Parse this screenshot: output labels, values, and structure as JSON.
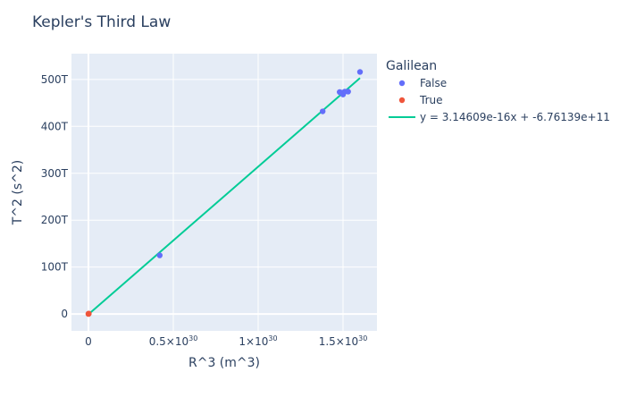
{
  "chart_data": {
    "type": "scatter",
    "title": "Kepler's Third Law",
    "xlabel": "R^3 (m^3)",
    "ylabel": "T^2 (s^2)",
    "xlim": [
      -1e+29,
      1.7e+30
    ],
    "ylim": [
      -36000000000000.0,
      555000000000000.0
    ],
    "x_ticks": [
      {
        "value": 0,
        "label": "0",
        "sup": ""
      },
      {
        "value": 5e+29,
        "label": "0.5×10",
        "sup": "30"
      },
      {
        "value": 1e+30,
        "label": "1×10",
        "sup": "30"
      },
      {
        "value": 1.5e+30,
        "label": "1.5×10",
        "sup": "30"
      }
    ],
    "y_ticks": [
      {
        "value": 0,
        "label": "0"
      },
      {
        "value": 100000000000000.0,
        "label": "100T"
      },
      {
        "value": 200000000000000.0,
        "label": "200T"
      },
      {
        "value": 300000000000000.0,
        "label": "300T"
      },
      {
        "value": 400000000000000.0,
        "label": "400T"
      },
      {
        "value": 500000000000000.0,
        "label": "500T"
      }
    ],
    "grid": true,
    "legend_title": "Galilean",
    "legend_position": "right",
    "series": [
      {
        "name": "False",
        "color": "#636efa",
        "mode": "markers",
        "points": [
          {
            "x": 1e+27,
            "y": 500000000000.0
          },
          {
            "x": 4.2e+29,
            "y": 125000000000000.0
          },
          {
            "x": 1.38e+30,
            "y": 432000000000000.0
          },
          {
            "x": 1.48e+30,
            "y": 473000000000000.0
          },
          {
            "x": 1.49e+30,
            "y": 472000000000000.0
          },
          {
            "x": 1.5e+30,
            "y": 468000000000000.0
          },
          {
            "x": 1.51e+30,
            "y": 474000000000000.0
          },
          {
            "x": 1.53e+30,
            "y": 474000000000000.0
          },
          {
            "x": 1.6e+30,
            "y": 516000000000000.0
          }
        ]
      },
      {
        "name": "True",
        "color": "#ef553b",
        "mode": "markers",
        "points": [
          {
            "x": 0.0,
            "y": 100000000000.0
          },
          {
            "x": 5e+26,
            "y": 300000000000.0
          },
          {
            "x": 1.5e+27,
            "y": 600000000000.0
          },
          {
            "x": 2e+27,
            "y": 900000000000.0
          }
        ]
      },
      {
        "name": "y = 3.14609e-16x + -6.76139e+11",
        "color": "#00cc96",
        "mode": "line",
        "points": [
          {
            "x": 0,
            "y": -676000000000.0
          },
          {
            "x": 1.6e+30,
            "y": 503000000000000.0
          }
        ]
      }
    ]
  }
}
